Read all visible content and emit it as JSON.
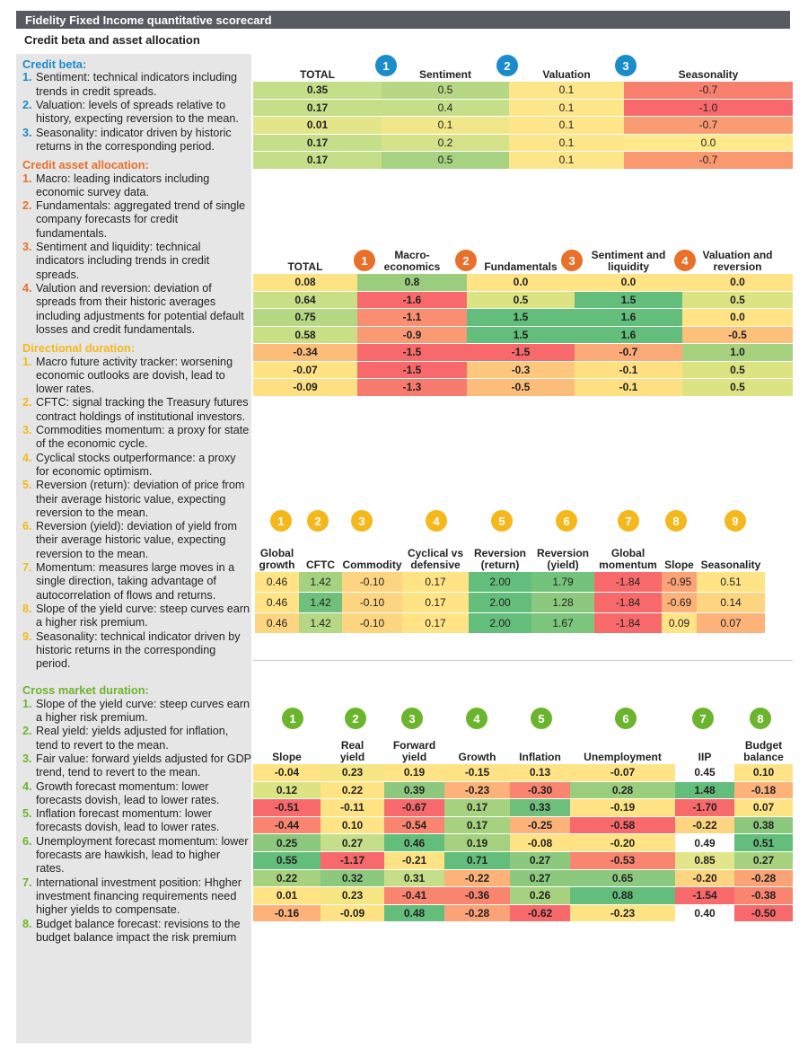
{
  "header": {
    "title": "Fidelity Fixed Income quantitative scorecard",
    "subtitle": "Credit beta and asset allocation"
  },
  "sidebar": {
    "sections": [
      {
        "heading": "Credit beta:",
        "color": "#1a8ccb",
        "items": [
          {
            "number": "1.",
            "text": "Sentiment: technical indicators including trends in credit spreads."
          },
          {
            "number": "2.",
            "text": "Valuation: levels of spreads relative to history, expecting reversion to the mean."
          },
          {
            "number": "3.",
            "text": "Seasonality: indicator driven by historic returns in the corresponding period."
          }
        ]
      },
      {
        "heading": "Credit asset allocation:",
        "color": "#e8702a",
        "items": [
          {
            "number": "1.",
            "text": "Macro: leading indicators including economic survey data."
          },
          {
            "number": "2.",
            "text": "Fundamentals: aggregated trend of single company forecasts for credit fundamentals."
          },
          {
            "number": "3.",
            "text": "Sentiment and liquidity: technical indicators including trends in credit spreads."
          },
          {
            "number": "4.",
            "text": "Valution and reversion: deviation of spreads from their historic averages including adjustments for potential default losses and credit fundamentals."
          }
        ]
      },
      {
        "heading": "Directional duration:",
        "color": "#f5b81c",
        "items": [
          {
            "number": "1.",
            "text": "Macro future activity tracker: worsening economic outlooks are dovish, lead to lower rates."
          },
          {
            "number": "2.",
            "text": "CFTC: signal tracking the Treasury futures contract holdings of institutional investors."
          },
          {
            "number": "3.",
            "text": "Commodities momentum: a proxy for state of the economic cycle."
          },
          {
            "number": "4.",
            "text": "Cyclical stocks outperformance: a proxy for economic optimism."
          },
          {
            "number": "5.",
            "text": "Reversion (return): deviation of price from their average historic value, expecting reversion to the mean."
          },
          {
            "number": "6.",
            "text": "Reversion (yield): deviation of yield from their average historic value, expecting reversion to the mean."
          },
          {
            "number": "7.",
            "text": "Momentum: measures large moves in a single direction, taking advantage of autocorrelation of flows and returns."
          },
          {
            "number": "8.",
            "text": "Slope of the yield curve: steep curves earn a higher risk premium."
          },
          {
            "number": "9.",
            "text": "Seasonality: technical indicator driven by historic returns in the corresponding period."
          }
        ]
      },
      {
        "heading": "Cross market duration:",
        "color": "#6bb52e",
        "items": [
          {
            "number": "1.",
            "text": "Slope of the yield curve: steep curves earn a higher risk premium."
          },
          {
            "number": "2.",
            "text": "Real yield: yields adjusted for inflation, tend to revert to the mean."
          },
          {
            "number": "3.",
            "text": "Fair value: forward yields adjusted for GDP trend, tend to revert to the mean."
          },
          {
            "number": "4.",
            "text": "Growth forecast momentum: lower forecasts dovish, lead to lower rates."
          },
          {
            "number": "5.",
            "text": "Inflation forecast momentum: lower forecasts dovish, lead to lower rates."
          },
          {
            "number": "6.",
            "text": "Unemployment forecast momentum: lower forecasts are hawkish, lead to higher rates."
          },
          {
            "number": "7.",
            "text": "International investment position: Hhgher investment financing requirements need higher yields to compensate."
          },
          {
            "number": "8.",
            "text": "Budget balance forecast: revisions to the budget balance impact the risk premium"
          }
        ]
      }
    ]
  },
  "tables": [
    {
      "marker_color": "#1a8ccb",
      "columns": [
        {
          "label": "TOTAL"
        },
        {
          "marker": "1",
          "label": "Sentiment"
        },
        {
          "marker": "2",
          "label": "Valuation"
        },
        {
          "marker": "3",
          "label": "Seasonality"
        }
      ],
      "rows": [
        [
          "0.35",
          "0.5",
          "0.1",
          "-0.7"
        ],
        [
          "0.17",
          "0.4",
          "0.1",
          "-1.0"
        ],
        [
          "0.01",
          "0.1",
          "0.1",
          "-0.7"
        ],
        [
          "0.17",
          "0.2",
          "0.1",
          "0.0"
        ],
        [
          "0.17",
          "0.5",
          "0.1",
          "-0.7"
        ]
      ],
      "colors": [
        [
          "#c5de89",
          "#b6d884",
          "#fde58a",
          "#f7806e"
        ],
        [
          "#c5de89",
          "#c5de89",
          "#fde58a",
          "#f8696b"
        ],
        [
          "#e3e58a",
          "#f0e78a",
          "#fde58a",
          "#fa9c73"
        ],
        [
          "#c5de89",
          "#d5e28a",
          "#fde58a",
          "#ffe98a"
        ],
        [
          "#c5de89",
          "#a6d281",
          "#fde58a",
          "#fa9870"
        ]
      ]
    },
    {
      "marker_color": "#e8702a",
      "columns": [
        {
          "label": "TOTAL"
        },
        {
          "marker": "1",
          "label": "Macro-\neconomics"
        },
        {
          "marker": "2",
          "label": "Fundamentals"
        },
        {
          "marker": "3",
          "label": "Sentiment and\nliquidity"
        },
        {
          "marker": "4",
          "label": "Valuation and\nreversion"
        }
      ],
      "rows": [
        [
          "0.08",
          "0.8",
          "0.0",
          "0.0",
          "0.0"
        ],
        [
          "0.64",
          "-1.6",
          "0.5",
          "1.5",
          "0.5"
        ],
        [
          "0.75",
          "-1.1",
          "1.5",
          "1.6",
          "0.0"
        ],
        [
          "0.58",
          "-0.9",
          "1.5",
          "1.6",
          "-0.5"
        ],
        [
          "-0.34",
          "-1.5",
          "-1.5",
          "-0.7",
          "1.0"
        ],
        [
          "-0.07",
          "-1.5",
          "-0.3",
          "-0.1",
          "0.5"
        ],
        [
          "-0.09",
          "-1.3",
          "-0.5",
          "-0.1",
          "0.5"
        ]
      ],
      "colors": [
        [
          "#fde383",
          "#9bcd7e",
          "#ffe384",
          "#ffe384",
          "#ffe384"
        ],
        [
          "#c9df86",
          "#f8696b",
          "#dbe383",
          "#63be7b",
          "#dbe383"
        ],
        [
          "#b5d883",
          "#f98e72",
          "#63be7b",
          "#63be7b",
          "#ffe384"
        ],
        [
          "#c9df86",
          "#fa9a74",
          "#63be7b",
          "#63be7b",
          "#fdc07c"
        ],
        [
          "#fcbc7a",
          "#f8696b",
          "#f8696b",
          "#fbaa77",
          "#a6d27f"
        ],
        [
          "#fee283",
          "#f8696b",
          "#fdc87d",
          "#fee083",
          "#dbe383"
        ],
        [
          "#fee083",
          "#f87a6e",
          "#fcbd7b",
          "#fee083",
          "#dbe383"
        ]
      ]
    },
    {
      "marker_color": "#f5b81c",
      "columns": [
        {
          "marker": "1",
          "label": "Global\ngrowth"
        },
        {
          "marker": "2",
          "label": "CFTC"
        },
        {
          "marker": "3",
          "label": "Commodity"
        },
        {
          "marker": "4",
          "label": "Cyclical vs\ndefensive"
        },
        {
          "marker": "5",
          "label": "Reversion\n(return)"
        },
        {
          "marker": "6",
          "label": "Reversion\n(yield)"
        },
        {
          "marker": "7",
          "label": "Global\nmomentum"
        },
        {
          "marker": "8",
          "label": "Slope"
        },
        {
          "marker": "9",
          "label": "Seasonality"
        }
      ],
      "rows": [
        [
          "0.46",
          "1.42",
          "-0.10",
          "0.17",
          "2.00",
          "1.79",
          "-1.84",
          "-0.95",
          "0.51"
        ],
        [
          "0.46",
          "1.42",
          "-0.10",
          "0.17",
          "2.00",
          "1.28",
          "-1.84",
          "-0.69",
          "0.14"
        ],
        [
          "0.46",
          "1.42",
          "-0.10",
          "0.17",
          "2.00",
          "1.67",
          "-1.84",
          "0.09",
          "0.07"
        ]
      ],
      "colors": [
        [
          "#ffe384",
          "#a6d27f",
          "#fdd580",
          "#ffe384",
          "#63be7b",
          "#73c37c",
          "#f8696b",
          "#fba276",
          "#ffe384"
        ],
        [
          "#ffe384",
          "#6ec07c",
          "#fdd580",
          "#ffe384",
          "#63be7b",
          "#8cc97e",
          "#f8696b",
          "#fcb279",
          "#fdd580"
        ],
        [
          "#fdd580",
          "#b6d884",
          "#fdd580",
          "#ffe384",
          "#63be7b",
          "#7cc57d",
          "#f8696b",
          "#ffe384",
          "#fcb279"
        ]
      ]
    },
    {
      "marker_color": "#6bb52e",
      "columns": [
        {
          "marker": "1",
          "label": "Slope"
        },
        {
          "marker": "2",
          "label": "Real\nyield"
        },
        {
          "marker": "3",
          "label": "Forward\nyield"
        },
        {
          "marker": "4",
          "label": "Growth"
        },
        {
          "marker": "5",
          "label": "Inflation"
        },
        {
          "marker": "6",
          "label": "Unemployment"
        },
        {
          "marker": "7",
          "label": "IIP"
        },
        {
          "marker": "8",
          "label": "Budget\nbalance"
        }
      ],
      "rows": [
        [
          "-0.04",
          "0.23",
          "0.19",
          "-0.15",
          "0.13",
          "-0.07",
          "0.45",
          "0.10"
        ],
        [
          "0.12",
          "0.22",
          "0.39",
          "-0.23",
          "-0.30",
          "0.28",
          "1.48",
          "-0.18"
        ],
        [
          "-0.51",
          "-0.11",
          "-0.67",
          "0.17",
          "0.33",
          "-0.19",
          "-1.70",
          "0.07"
        ],
        [
          "-0.44",
          "0.10",
          "-0.54",
          "0.17",
          "-0.25",
          "-0.58",
          "-0.22",
          "0.38"
        ],
        [
          "0.25",
          "0.27",
          "0.46",
          "0.19",
          "-0.08",
          "-0.20",
          "0.49",
          "0.51"
        ],
        [
          "0.55",
          "-1.17",
          "-0.21",
          "0.71",
          "0.27",
          "-0.53",
          "0.85",
          "0.27"
        ],
        [
          "0.22",
          "0.32",
          "0.31",
          "-0.22",
          "0.27",
          "0.65",
          "-0.20",
          "-0.28"
        ],
        [
          "0.01",
          "0.23",
          "-0.41",
          "-0.36",
          "0.26",
          "0.88",
          "-1.54",
          "-0.38"
        ],
        [
          "-0.16",
          "-0.09",
          "0.48",
          "-0.28",
          "-0.62",
          "-0.23",
          "0.40",
          "-0.50"
        ]
      ],
      "colors": [
        [
          "#ffe384",
          "#f6e683",
          "#ffe384",
          "#fee283",
          "#ffe384",
          "#ffe384",
          "#ffffff",
          "#ffe384"
        ],
        [
          "#dbe383",
          "#ffe384",
          "#8cc97e",
          "#fcb279",
          "#f98570",
          "#9bcd7e",
          "#63be7b",
          "#fcb279"
        ],
        [
          "#f8696b",
          "#fee283",
          "#f8696b",
          "#a6d27f",
          "#6ec07c",
          "#ffe384",
          "#f8696b",
          "#ffe384"
        ],
        [
          "#f98570",
          "#ffe384",
          "#f98570",
          "#a6d27f",
          "#fcb279",
          "#f8696b",
          "#fdd580",
          "#8cc97e"
        ],
        [
          "#8cc97e",
          "#c5de89",
          "#63be7b",
          "#a6d27f",
          "#fee283",
          "#ffe384",
          "#ffffff",
          "#63be7b"
        ],
        [
          "#63be7b",
          "#f8696b",
          "#fde383",
          "#63be7b",
          "#8cc97e",
          "#f98570",
          "#e3e58a",
          "#a6d27f"
        ],
        [
          "#a6d27f",
          "#8cc97e",
          "#c5de89",
          "#fcb279",
          "#8cc97e",
          "#8cc97e",
          "#fdd580",
          "#fba276"
        ],
        [
          "#ffe384",
          "#f6e683",
          "#f98570",
          "#f98570",
          "#a6d27f",
          "#63be7b",
          "#f8696b",
          "#f98570"
        ],
        [
          "#fcb279",
          "#fee283",
          "#63be7b",
          "#fba276",
          "#f8696b",
          "#fde383",
          "#ffffff",
          "#f8696b"
        ]
      ]
    }
  ]
}
